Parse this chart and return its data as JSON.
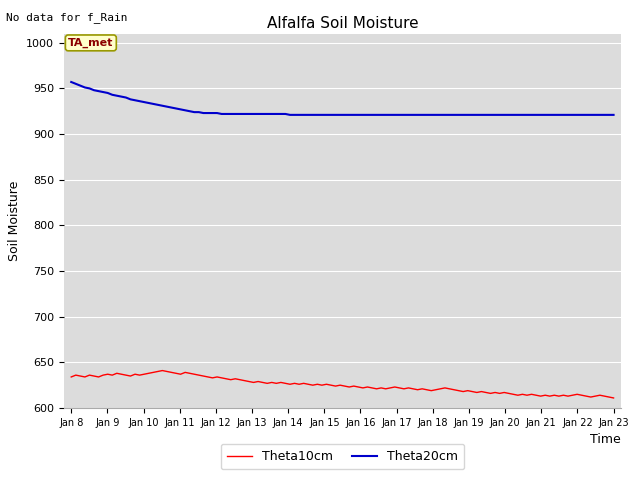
{
  "title": "Alfalfa Soil Moisture",
  "xlabel": "Time",
  "ylabel": "Soil Moisture",
  "no_data_label": "No data for f_Rain",
  "ta_met_label": "TA_met",
  "ylim": [
    600,
    1010
  ],
  "yticks": [
    600,
    650,
    700,
    750,
    800,
    850,
    900,
    950,
    1000
  ],
  "background_color": "#dcdcdc",
  "theta10_color": "#ff0000",
  "theta20_color": "#0000cc",
  "legend_labels": [
    "Theta10cm",
    "Theta20cm"
  ],
  "x_tick_labels": [
    "Jan 8",
    "Jan 9",
    "Jan 10",
    "Jan 11",
    "Jan 12",
    "Jan 13",
    "Jan 14",
    "Jan 15",
    "Jan 16",
    "Jan 17",
    "Jan 18",
    "Jan 19",
    "Jan 20",
    "Jan 21",
    "Jan 22",
    "Jan 23"
  ],
  "theta20_values": [
    957,
    955,
    953,
    951,
    950,
    948,
    947,
    946,
    945,
    943,
    942,
    941,
    940,
    938,
    937,
    936,
    935,
    934,
    933,
    932,
    931,
    930,
    929,
    928,
    927,
    926,
    925,
    924,
    924,
    923,
    923,
    923,
    923,
    922,
    922,
    922,
    922,
    922,
    922,
    922,
    922,
    922,
    922,
    922,
    922,
    922,
    922,
    922,
    921,
    921,
    921,
    921,
    921,
    921,
    921,
    921,
    921,
    921,
    921,
    921,
    921,
    921,
    921,
    921,
    921,
    921,
    921,
    921,
    921,
    921,
    921,
    921,
    921,
    921,
    921,
    921,
    921,
    921,
    921,
    921,
    921,
    921,
    921,
    921,
    921,
    921,
    921,
    921,
    921,
    921,
    921,
    921,
    921,
    921,
    921,
    921,
    921,
    921,
    921,
    921,
    921,
    921,
    921,
    921,
    921,
    921,
    921,
    921,
    921,
    921,
    921,
    921,
    921,
    921,
    921,
    921,
    921,
    921,
    921,
    921
  ],
  "theta10_values": [
    634,
    636,
    635,
    634,
    636,
    635,
    634,
    636,
    637,
    636,
    638,
    637,
    636,
    635,
    637,
    636,
    637,
    638,
    639,
    640,
    641,
    640,
    639,
    638,
    637,
    639,
    638,
    637,
    636,
    635,
    634,
    633,
    634,
    633,
    632,
    631,
    632,
    631,
    630,
    629,
    628,
    629,
    628,
    627,
    628,
    627,
    628,
    627,
    626,
    627,
    626,
    627,
    626,
    625,
    626,
    625,
    626,
    625,
    624,
    625,
    624,
    623,
    624,
    623,
    622,
    623,
    622,
    621,
    622,
    621,
    622,
    623,
    622,
    621,
    622,
    621,
    620,
    621,
    620,
    619,
    620,
    621,
    622,
    621,
    620,
    619,
    618,
    619,
    618,
    617,
    618,
    617,
    616,
    617,
    616,
    617,
    616,
    615,
    614,
    615,
    614,
    615,
    614,
    613,
    614,
    613,
    614,
    613,
    614,
    613,
    614,
    615,
    614,
    613,
    612,
    613,
    614,
    613,
    612,
    611
  ]
}
